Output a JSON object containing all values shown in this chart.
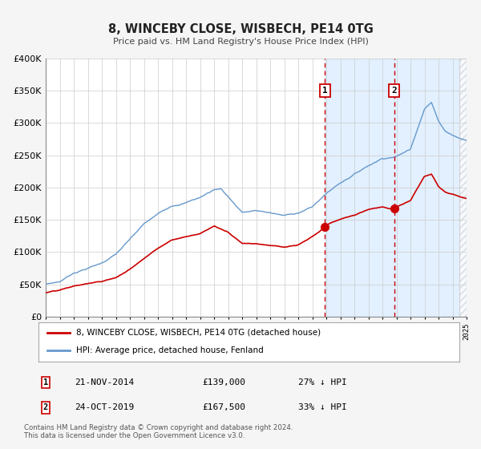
{
  "title": "8, WINCEBY CLOSE, WISBECH, PE14 0TG",
  "subtitle": "Price paid vs. HM Land Registry's House Price Index (HPI)",
  "legend_label_red": "8, WINCEBY CLOSE, WISBECH, PE14 0TG (detached house)",
  "legend_label_blue": "HPI: Average price, detached house, Fenland",
  "ylim": [
    0,
    400000
  ],
  "yticks": [
    0,
    50000,
    100000,
    150000,
    200000,
    250000,
    300000,
    350000,
    400000
  ],
  "ytick_labels": [
    "£0",
    "£50K",
    "£100K",
    "£150K",
    "£200K",
    "£250K",
    "£300K",
    "£350K",
    "£400K"
  ],
  "red_color": "#cc0000",
  "blue_line_color": "#6699cc",
  "vline_color": "#cc0000",
  "shade_color": "#ddeeff",
  "hatch_color": "#cccccc",
  "marker1_x": 2014.9,
  "marker1_y": 139000,
  "marker2_x": 2019.83,
  "marker2_y": 167500,
  "sale1_date": "21-NOV-2014",
  "sale1_price": "£139,000",
  "sale1_hpi": "27% ↓ HPI",
  "sale2_date": "24-OCT-2019",
  "sale2_price": "£167,500",
  "sale2_hpi": "33% ↓ HPI",
  "footnote1": "Contains HM Land Registry data © Crown copyright and database right 2024.",
  "footnote2": "This data is licensed under the Open Government Licence v3.0.",
  "background_color": "#f5f5f5",
  "plot_bg_color": "#ffffff",
  "xmin": 1995,
  "xmax": 2025
}
